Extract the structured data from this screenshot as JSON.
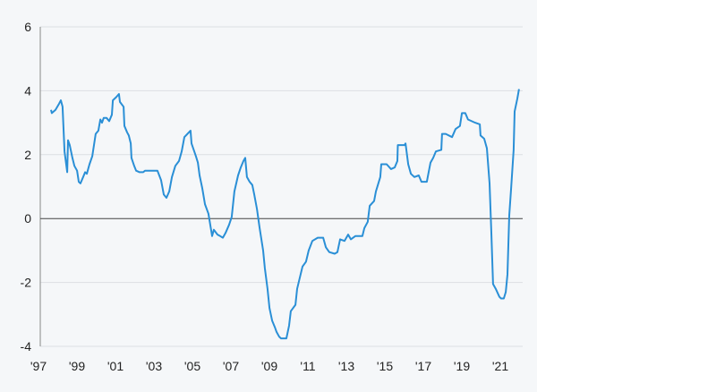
{
  "chart_data": {
    "type": "line",
    "title": "",
    "xlabel": "",
    "ylabel": "",
    "xlim": [
      1997,
      2022.2
    ],
    "ylim": [
      -4,
      6
    ],
    "grid": true,
    "legend": "none",
    "colors": {
      "line": "#2a8fd6",
      "grid": "#dcdfe3",
      "zero": "#444444",
      "axis": "#888888",
      "background": "#f5f7f9"
    },
    "y_ticks": [
      {
        "value": 6,
        "label": "6"
      },
      {
        "value": 4,
        "label": "4"
      },
      {
        "value": 2,
        "label": "2"
      },
      {
        "value": 0,
        "label": "0"
      },
      {
        "value": -2,
        "label": "-2"
      },
      {
        "value": -4,
        "label": "-4"
      }
    ],
    "x_ticks": [
      {
        "value": 1997,
        "label": "'97"
      },
      {
        "value": 1999,
        "label": "'99"
      },
      {
        "value": 2001,
        "label": "'01"
      },
      {
        "value": 2003,
        "label": "'03"
      },
      {
        "value": 2005,
        "label": "'05"
      },
      {
        "value": 2007,
        "label": "'07"
      },
      {
        "value": 2009,
        "label": "'09"
      },
      {
        "value": 2011,
        "label": "'11"
      },
      {
        "value": 2013,
        "label": "'13"
      },
      {
        "value": 2015,
        "label": "'15"
      },
      {
        "value": 2017,
        "label": "'17"
      },
      {
        "value": 2019,
        "label": "'19"
      },
      {
        "value": 2021,
        "label": "'21"
      }
    ],
    "series": [
      {
        "name": "series",
        "points": [
          [
            1997.56,
            3.4
          ],
          [
            1997.6,
            3.3
          ],
          [
            1997.79,
            3.4
          ],
          [
            1997.98,
            3.6
          ],
          [
            1998.07,
            3.7
          ],
          [
            1998.16,
            3.5
          ],
          [
            1998.26,
            2.1
          ],
          [
            1998.4,
            1.45
          ],
          [
            1998.44,
            2.45
          ],
          [
            1998.53,
            2.3
          ],
          [
            1998.67,
            1.9
          ],
          [
            1998.77,
            1.65
          ],
          [
            1998.91,
            1.5
          ],
          [
            1999.0,
            1.15
          ],
          [
            1999.09,
            1.1
          ],
          [
            1999.23,
            1.3
          ],
          [
            1999.33,
            1.45
          ],
          [
            1999.42,
            1.4
          ],
          [
            1999.56,
            1.7
          ],
          [
            1999.7,
            1.95
          ],
          [
            1999.88,
            2.65
          ],
          [
            2000.02,
            2.75
          ],
          [
            2000.12,
            3.1
          ],
          [
            2000.21,
            3.0
          ],
          [
            2000.3,
            3.15
          ],
          [
            2000.44,
            3.15
          ],
          [
            2000.58,
            3.05
          ],
          [
            2000.72,
            3.25
          ],
          [
            2000.77,
            3.7
          ],
          [
            2000.95,
            3.8
          ],
          [
            2001.09,
            3.9
          ],
          [
            2001.14,
            3.65
          ],
          [
            2001.33,
            3.5
          ],
          [
            2001.37,
            2.9
          ],
          [
            2001.51,
            2.7
          ],
          [
            2001.6,
            2.6
          ],
          [
            2001.7,
            2.35
          ],
          [
            2001.74,
            1.9
          ],
          [
            2001.88,
            1.65
          ],
          [
            2001.98,
            1.5
          ],
          [
            2002.16,
            1.45
          ],
          [
            2002.35,
            1.45
          ],
          [
            2002.44,
            1.5
          ],
          [
            2003.09,
            1.5
          ],
          [
            2003.28,
            1.2
          ],
          [
            2003.42,
            0.75
          ],
          [
            2003.56,
            0.65
          ],
          [
            2003.7,
            0.85
          ],
          [
            2003.84,
            1.3
          ],
          [
            2004.02,
            1.65
          ],
          [
            2004.21,
            1.8
          ],
          [
            2004.35,
            2.1
          ],
          [
            2004.49,
            2.55
          ],
          [
            2004.81,
            2.75
          ],
          [
            2004.86,
            2.35
          ],
          [
            2005.09,
            1.95
          ],
          [
            2005.19,
            1.75
          ],
          [
            2005.28,
            1.35
          ],
          [
            2005.42,
            0.95
          ],
          [
            2005.56,
            0.45
          ],
          [
            2005.74,
            0.15
          ],
          [
            2005.93,
            -0.55
          ],
          [
            2006.02,
            -0.35
          ],
          [
            2006.21,
            -0.5
          ],
          [
            2006.35,
            -0.55
          ],
          [
            2006.49,
            -0.6
          ],
          [
            2006.63,
            -0.45
          ],
          [
            2006.81,
            -0.2
          ],
          [
            2006.95,
            0.05
          ],
          [
            2007.09,
            0.85
          ],
          [
            2007.28,
            1.35
          ],
          [
            2007.42,
            1.6
          ],
          [
            2007.56,
            1.8
          ],
          [
            2007.65,
            1.9
          ],
          [
            2007.74,
            1.3
          ],
          [
            2007.88,
            1.15
          ],
          [
            2008.02,
            1.05
          ],
          [
            2008.12,
            0.75
          ],
          [
            2008.26,
            0.3
          ],
          [
            2008.4,
            -0.3
          ],
          [
            2008.58,
            -1.0
          ],
          [
            2008.67,
            -1.55
          ],
          [
            2008.81,
            -2.2
          ],
          [
            2008.91,
            -2.8
          ],
          [
            2009.05,
            -3.2
          ],
          [
            2009.19,
            -3.4
          ],
          [
            2009.28,
            -3.55
          ],
          [
            2009.42,
            -3.7
          ],
          [
            2009.51,
            -3.75
          ],
          [
            2009.79,
            -3.75
          ],
          [
            2009.93,
            -3.35
          ],
          [
            2010.02,
            -2.9
          ],
          [
            2010.26,
            -2.7
          ],
          [
            2010.35,
            -2.2
          ],
          [
            2010.49,
            -1.85
          ],
          [
            2010.63,
            -1.5
          ],
          [
            2010.81,
            -1.35
          ],
          [
            2010.95,
            -1.0
          ],
          [
            2011.14,
            -0.7
          ],
          [
            2011.42,
            -0.6
          ],
          [
            2011.7,
            -0.6
          ],
          [
            2011.84,
            -0.9
          ],
          [
            2012.02,
            -1.05
          ],
          [
            2012.3,
            -1.1
          ],
          [
            2012.44,
            -1.05
          ],
          [
            2012.58,
            -0.65
          ],
          [
            2012.81,
            -0.7
          ],
          [
            2013.0,
            -0.5
          ],
          [
            2013.14,
            -0.65
          ],
          [
            2013.37,
            -0.55
          ],
          [
            2013.74,
            -0.55
          ],
          [
            2013.84,
            -0.3
          ],
          [
            2014.02,
            -0.1
          ],
          [
            2014.12,
            0.4
          ],
          [
            2014.35,
            0.55
          ],
          [
            2014.44,
            0.85
          ],
          [
            2014.67,
            1.3
          ],
          [
            2014.72,
            1.7
          ],
          [
            2015.0,
            1.7
          ],
          [
            2015.23,
            1.55
          ],
          [
            2015.42,
            1.6
          ],
          [
            2015.56,
            1.8
          ],
          [
            2015.58,
            2.3
          ],
          [
            2015.93,
            2.3
          ],
          [
            2015.98,
            2.35
          ],
          [
            2016.12,
            1.7
          ],
          [
            2016.26,
            1.4
          ],
          [
            2016.44,
            1.3
          ],
          [
            2016.67,
            1.35
          ],
          [
            2016.81,
            1.15
          ],
          [
            2017.09,
            1.15
          ],
          [
            2017.28,
            1.75
          ],
          [
            2017.42,
            1.9
          ],
          [
            2017.56,
            2.1
          ],
          [
            2017.84,
            2.15
          ],
          [
            2017.88,
            2.65
          ],
          [
            2018.07,
            2.65
          ],
          [
            2018.4,
            2.55
          ],
          [
            2018.58,
            2.8
          ],
          [
            2018.81,
            2.9
          ],
          [
            2018.91,
            3.3
          ],
          [
            2019.09,
            3.3
          ],
          [
            2019.23,
            3.1
          ],
          [
            2019.6,
            3.0
          ],
          [
            2019.84,
            2.95
          ],
          [
            2019.88,
            2.6
          ],
          [
            2020.07,
            2.5
          ],
          [
            2020.21,
            2.2
          ],
          [
            2020.35,
            1.1
          ],
          [
            2020.44,
            -0.45
          ],
          [
            2020.53,
            -2.05
          ],
          [
            2020.67,
            -2.2
          ],
          [
            2020.86,
            -2.45
          ],
          [
            2020.95,
            -2.5
          ],
          [
            2021.09,
            -2.5
          ],
          [
            2021.19,
            -2.3
          ],
          [
            2021.28,
            -1.75
          ],
          [
            2021.37,
            0.1
          ],
          [
            2021.47,
            0.95
          ],
          [
            2021.6,
            2.15
          ],
          [
            2021.65,
            3.35
          ],
          [
            2021.79,
            3.75
          ],
          [
            2021.88,
            4.05
          ]
        ]
      }
    ]
  }
}
